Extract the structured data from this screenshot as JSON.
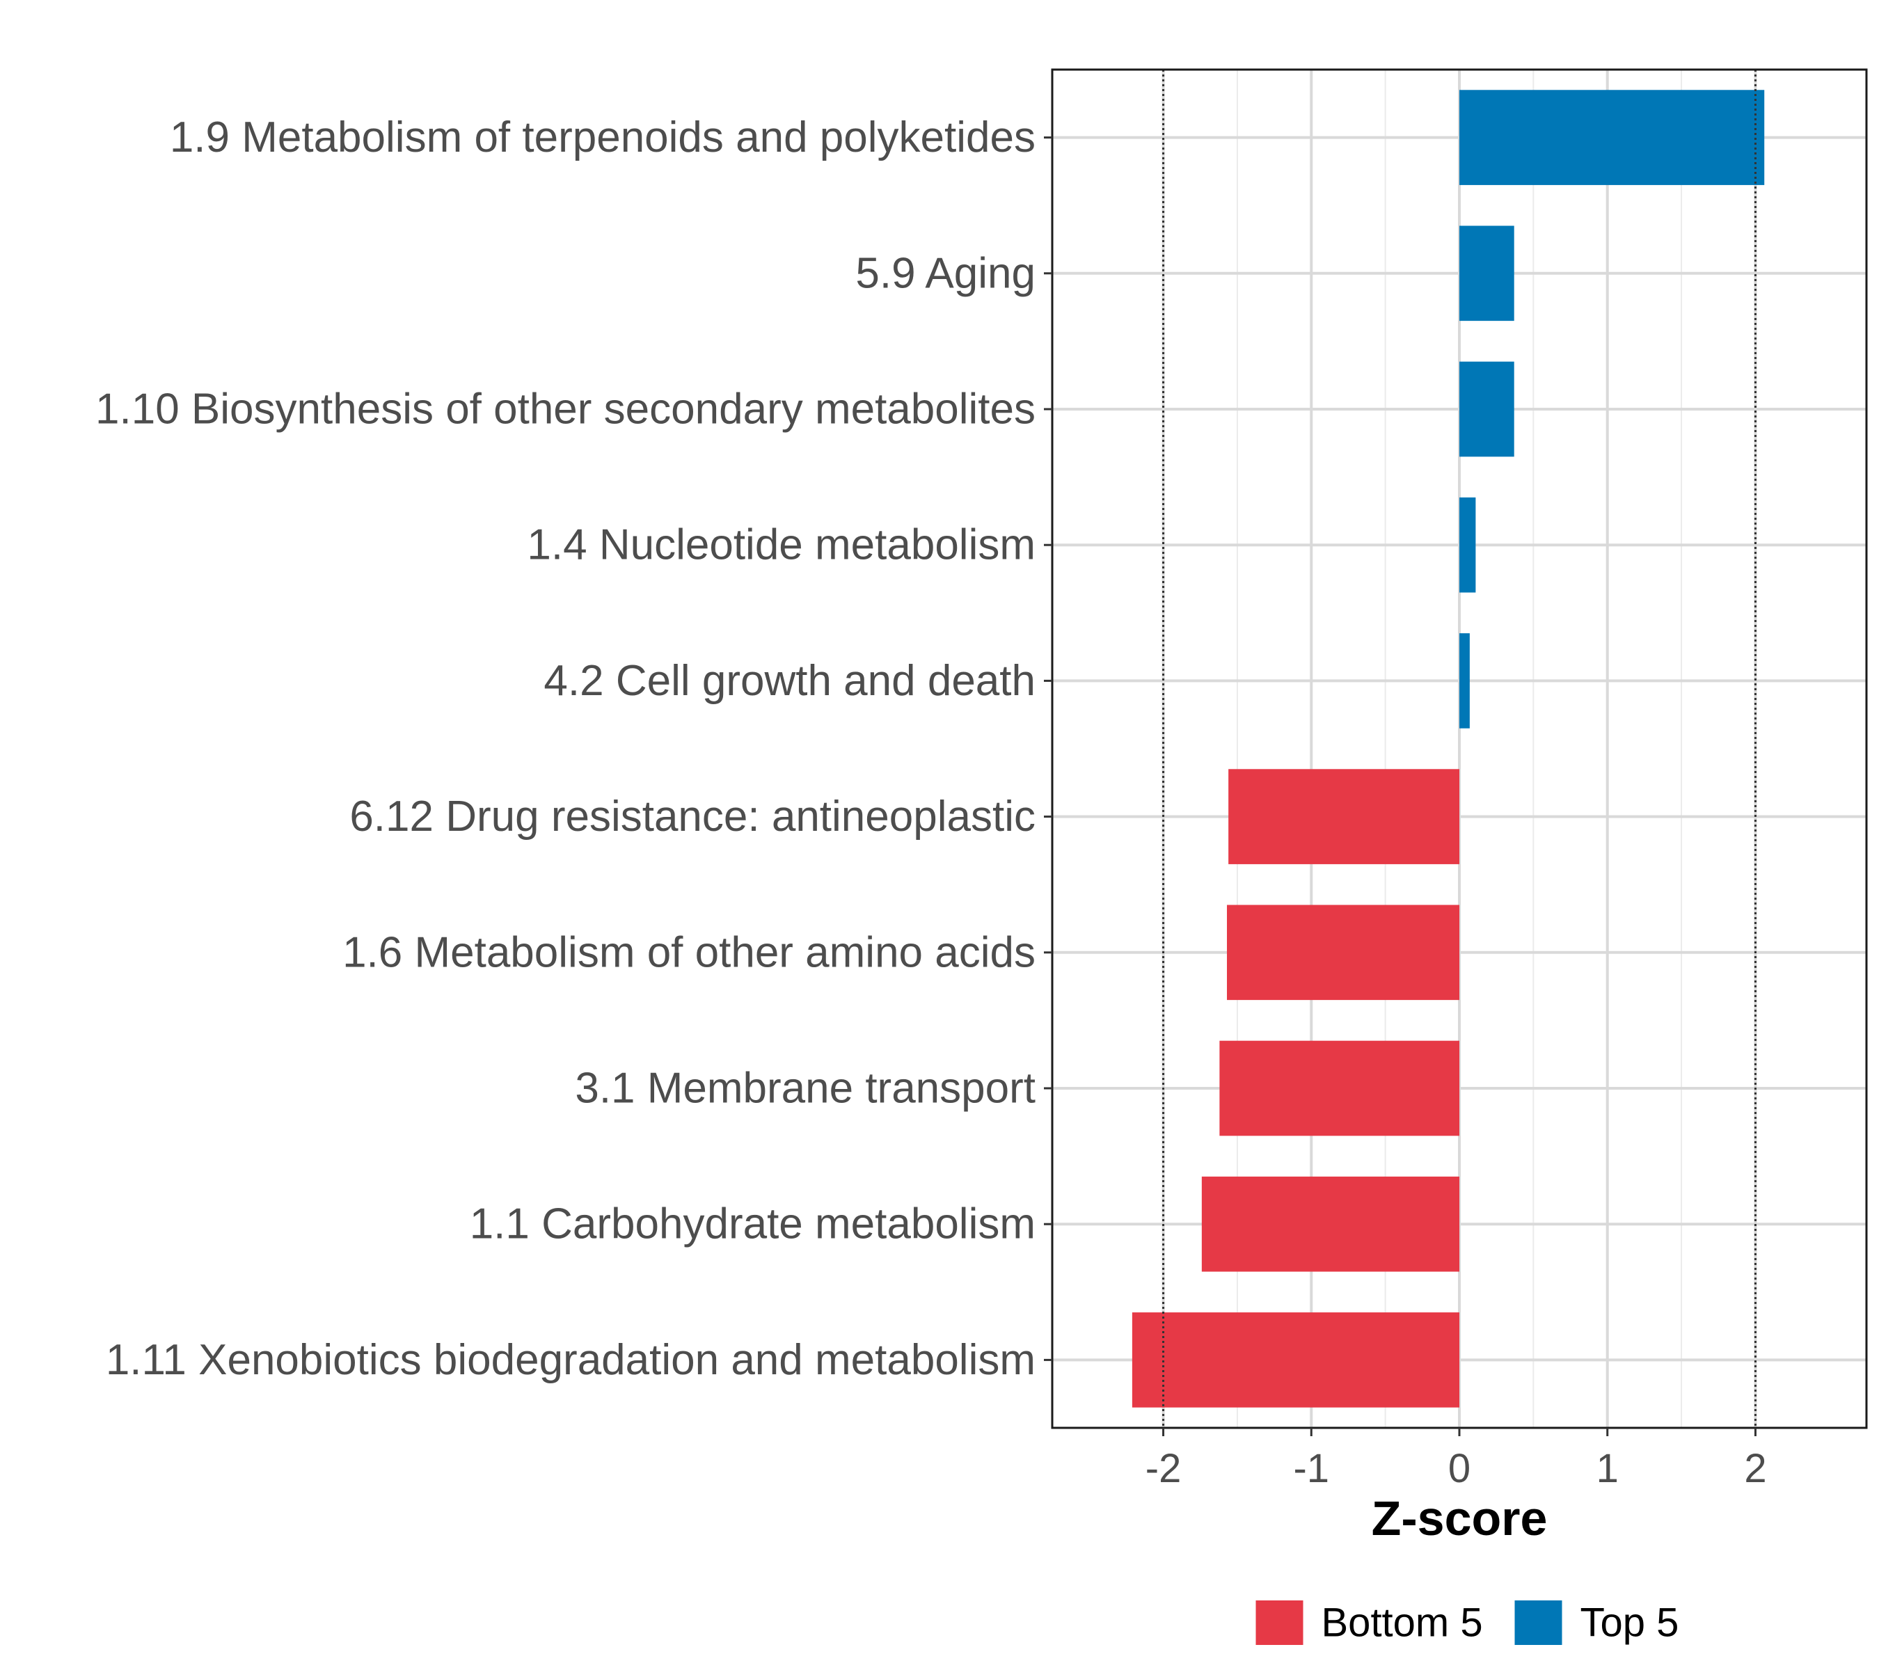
{
  "chart_data": {
    "type": "bar",
    "orientation": "horizontal",
    "title": "",
    "xlabel": "Z-score",
    "ylabel": "",
    "xlim": [
      -2.75,
      2.75
    ],
    "xticks": [
      -2,
      -1,
      0,
      1,
      2
    ],
    "xtick_labels": [
      "-2",
      "-1",
      "0",
      "1",
      "2"
    ],
    "reference_lines": [
      -2,
      2
    ],
    "grid": true,
    "legend_position": "bottom",
    "categories": [
      "1.9 Metabolism of terpenoids and polyketides",
      "5.9 Aging",
      "1.10 Biosynthesis of other secondary metabolites",
      "1.4 Nucleotide metabolism",
      "4.2 Cell growth and death",
      "6.12 Drug resistance: antineoplastic",
      "1.6 Metabolism of other amino acids",
      "3.1 Membrane transport",
      "1.1 Carbohydrate metabolism",
      "1.11 Xenobiotics biodegradation and metabolism"
    ],
    "values": [
      2.06,
      0.37,
      0.37,
      0.11,
      0.07,
      -1.56,
      -1.57,
      -1.62,
      -1.74,
      -2.21
    ],
    "groups": [
      "Top 5",
      "Top 5",
      "Top 5",
      "Top 5",
      "Top 5",
      "Bottom 5",
      "Bottom 5",
      "Bottom 5",
      "Bottom 5",
      "Bottom 5"
    ],
    "legend": [
      {
        "name": "Bottom 5",
        "color": "#e63946"
      },
      {
        "name": "Top 5",
        "color": "#0077b6"
      }
    ],
    "colors": {
      "Top 5": "#0077b6",
      "Bottom 5": "#e63946"
    }
  }
}
